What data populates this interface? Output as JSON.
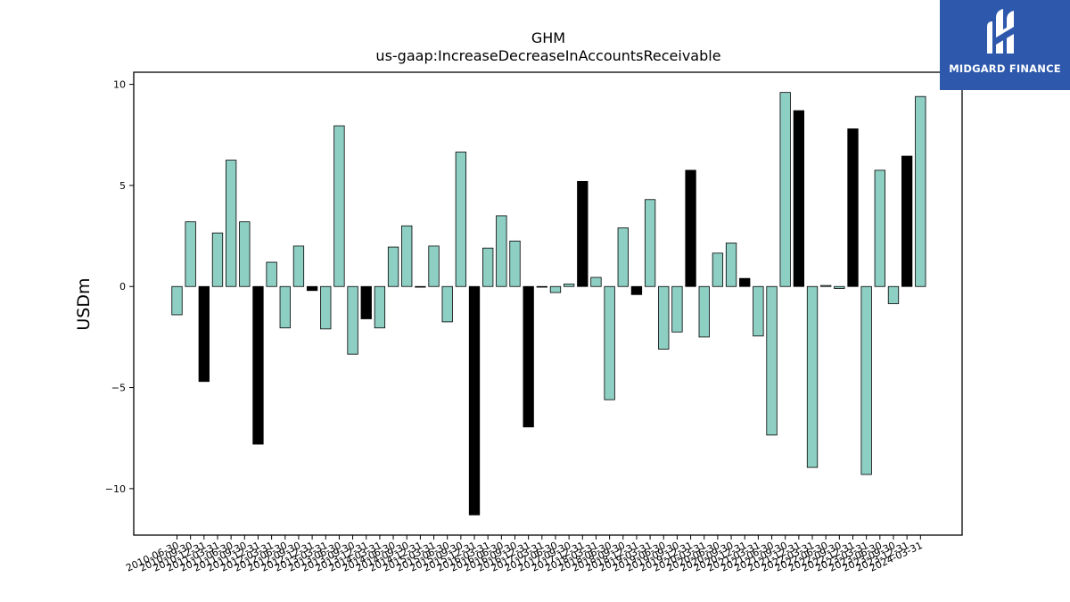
{
  "brand": {
    "name": "MIDGARD FINANCE",
    "color": "#2d58ac"
  },
  "chart_data": {
    "type": "bar",
    "title": "GHM",
    "subtitle": "us-gaap:IncreaseDecreaseInAccountsReceivable",
    "xlabel": "",
    "ylabel": "USDm",
    "ylim": [
      -12.3,
      10.6
    ],
    "yticks": [
      10,
      5,
      0,
      -5,
      -10
    ],
    "ytick_labels": [
      "10",
      "5",
      "0",
      "−5",
      "−10"
    ],
    "grid": false,
    "colors": {
      "quarterly": "#8ecfc4",
      "annual": "#000000"
    },
    "categories": [
      "2010-06-30",
      "2010-09-30",
      "2010-12-31",
      "2011-03-31",
      "2011-06-30",
      "2011-09-30",
      "2011-12-31",
      "2012-03-31",
      "2012-06-30",
      "2012-09-30",
      "2012-12-31",
      "2013-03-31",
      "2013-06-30",
      "2013-09-30",
      "2013-12-31",
      "2014-03-31",
      "2014-06-30",
      "2014-09-30",
      "2014-12-31",
      "2015-03-31",
      "2015-06-30",
      "2015-09-30",
      "2015-12-31",
      "2016-03-31",
      "2016-06-30",
      "2016-09-30",
      "2016-12-31",
      "2017-03-31",
      "2017-06-30",
      "2017-09-30",
      "2017-12-31",
      "2018-03-31",
      "2018-06-30",
      "2018-09-30",
      "2018-12-31",
      "2019-03-31",
      "2019-06-30",
      "2019-09-30",
      "2019-12-31",
      "2020-03-31",
      "2020-06-30",
      "2020-09-30",
      "2020-12-31",
      "2021-03-31",
      "2021-06-30",
      "2021-09-30",
      "2021-12-31",
      "2022-03-31",
      "2022-06-30",
      "2022-09-30",
      "2022-12-31",
      "2023-03-31",
      "2023-06-30",
      "2023-09-30",
      "2023-12-31",
      "2024-03-31"
    ],
    "values": [
      -1.4,
      3.2,
      -4.7,
      2.65,
      6.25,
      3.2,
      -7.8,
      1.2,
      -2.05,
      2.0,
      -0.2,
      -2.1,
      7.95,
      -3.35,
      -1.6,
      -2.05,
      1.95,
      3.0,
      0.0,
      2.0,
      -1.75,
      6.65,
      -11.3,
      1.9,
      3.5,
      2.25,
      -6.95,
      0.0,
      -0.3,
      0.12,
      5.2,
      0.45,
      -5.6,
      2.9,
      -0.4,
      4.3,
      -3.1,
      -2.25,
      5.75,
      -2.5,
      1.65,
      2.15,
      0.4,
      -2.45,
      -7.35,
      9.6,
      8.7,
      -8.95,
      0.05,
      -0.1,
      7.8,
      -9.3,
      5.75,
      -0.85,
      6.45,
      9.4
    ],
    "annual_flags": [
      false,
      false,
      true,
      false,
      false,
      false,
      true,
      false,
      false,
      false,
      true,
      false,
      false,
      false,
      true,
      false,
      false,
      false,
      true,
      false,
      false,
      false,
      true,
      false,
      false,
      false,
      true,
      false,
      false,
      false,
      true,
      false,
      false,
      false,
      true,
      false,
      false,
      false,
      true,
      false,
      false,
      false,
      true,
      false,
      false,
      false,
      true,
      false,
      false,
      false,
      true,
      false,
      false,
      false,
      true,
      false
    ]
  }
}
